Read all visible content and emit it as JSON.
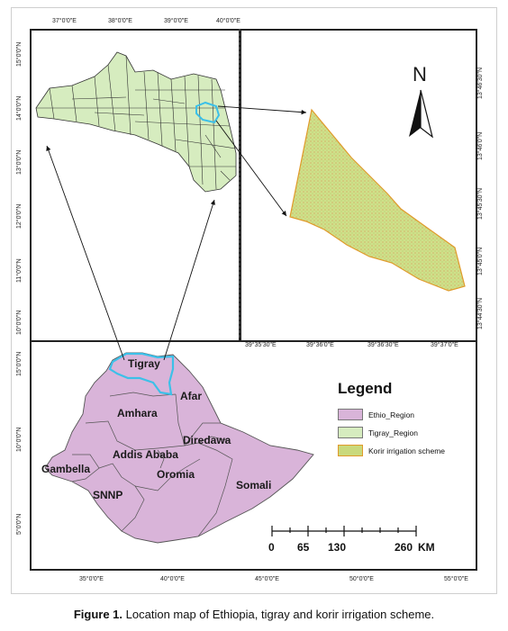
{
  "figure": {
    "caption_label": "Figure 1.",
    "caption_text": " Location map of Ethiopia, tigray and korir irrigation scheme."
  },
  "tigray_panel": {
    "x_ticks": [
      "37°0'0\"E",
      "38°0'0\"E",
      "39°0'0\"E",
      "40°0'0\"E"
    ],
    "y_ticks": [
      "15°0'0\"N",
      "14°0'0\"N",
      "13°0'0\"N",
      "12°0'0\"N",
      "11°0'0\"N",
      "10°0'0\"N"
    ]
  },
  "korir_panel": {
    "x_ticks": [
      "39°35'30\"E",
      "39°36'0\"E",
      "39°36'30\"E",
      "39°37'0\"E"
    ],
    "y_ticks": [
      "13°46'30\"N",
      "13°46'0\"N",
      "13°45'30\"N",
      "13°45'0\"N",
      "13°44'30\"N"
    ],
    "north_label": "N"
  },
  "ethiopia_panel": {
    "x_ticks": [
      "35°0'0\"E",
      "40°0'0\"E",
      "45°0'0\"E",
      "50°0'0\"E",
      "55°0'0\"E"
    ],
    "y_ticks": [
      "15°0'0\"N",
      "10°0'0\"N",
      "5°0'0\"N"
    ],
    "regions": {
      "tigray": "Tigray",
      "afar": "Afar",
      "amhara": "Amhara",
      "diredawa": "Diredawa",
      "addis": "Addis Ababa",
      "gambella": "Gambella",
      "oromia": "Oromia",
      "snnp": "SNNP",
      "somali": "Somali"
    }
  },
  "legend": {
    "title": "Legend",
    "items": [
      {
        "label": "Ethio_Region",
        "color": "#d9b4d9"
      },
      {
        "label": "Tigray_Region",
        "color": "#d6ecbf"
      },
      {
        "label": "Korir irrigation scheme",
        "color": "#c9d97c"
      }
    ]
  },
  "scale_bar": {
    "labels": [
      "0",
      "65",
      "130",
      "260"
    ],
    "unit": "KM"
  },
  "colors": {
    "ethiopia_fill": "#d9b4d9",
    "tigray_fill": "#d6ecbf",
    "korir_fill": "#c9d97c",
    "korir_outline": "#e09a2a",
    "tigray_highlight": "#3cc0e8"
  }
}
